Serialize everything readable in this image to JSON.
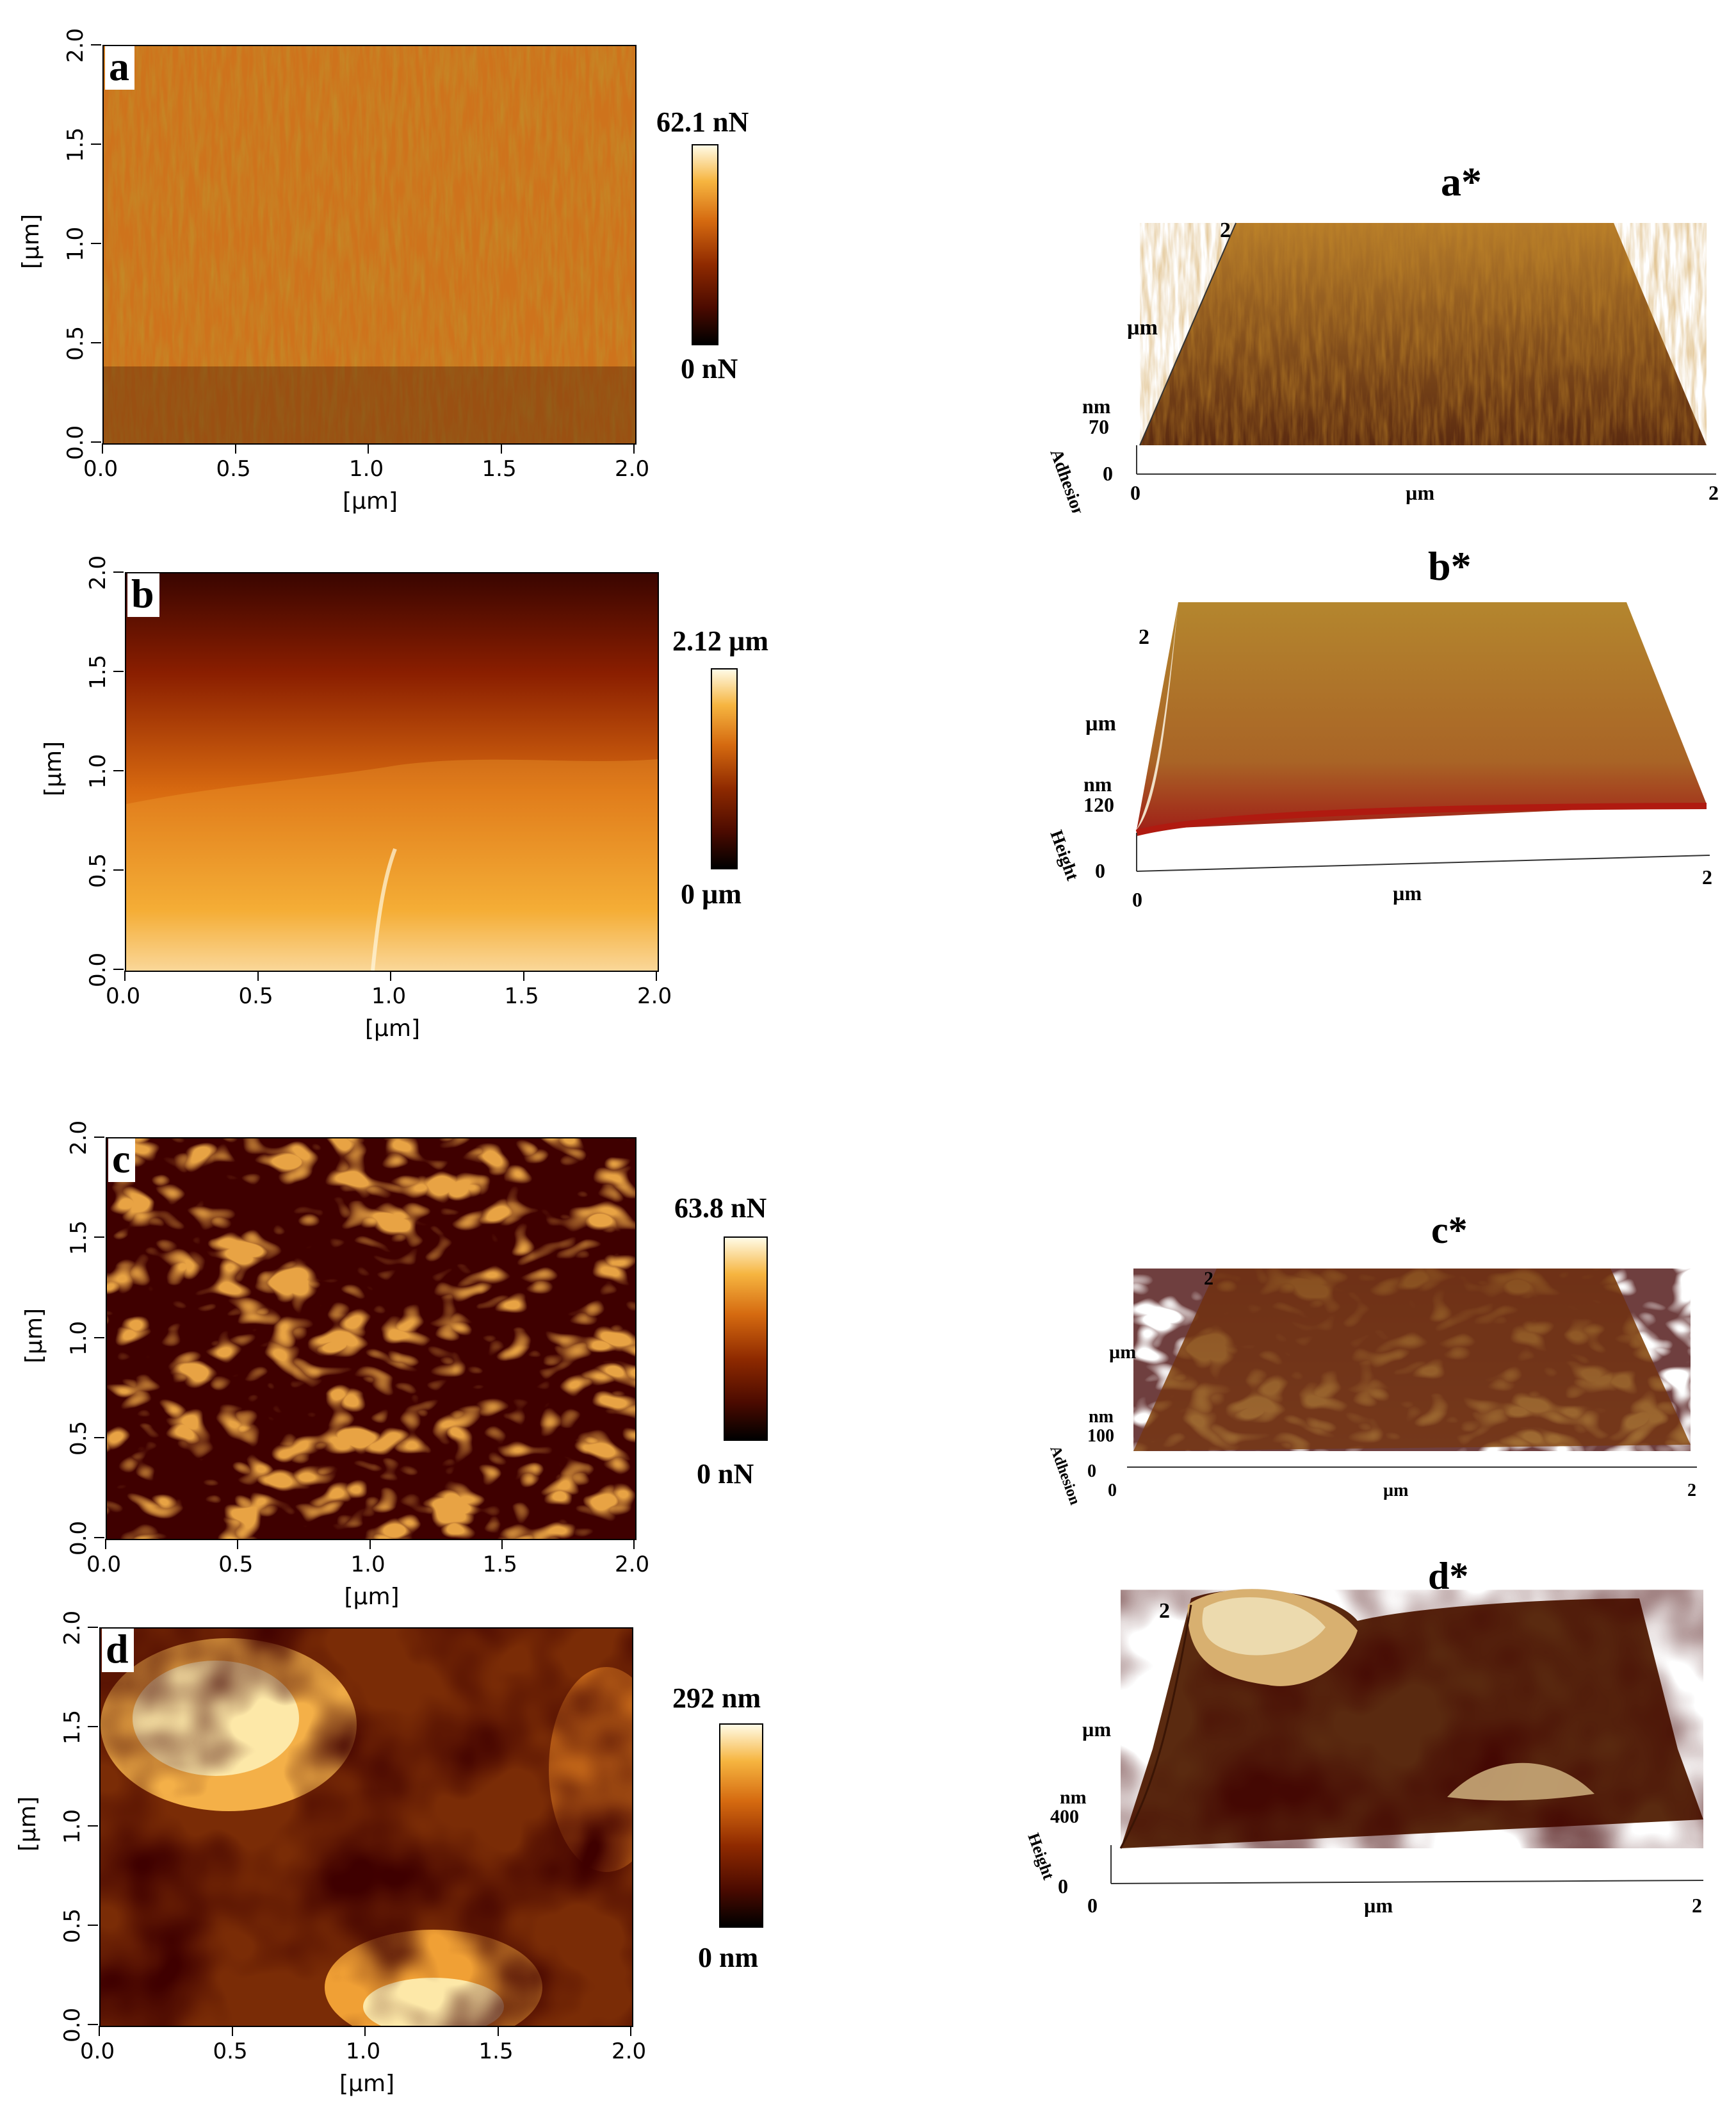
{
  "panels": [
    {
      "letter": "a",
      "scale_max": "62.1 nN",
      "scale_min": "0 nN"
    },
    {
      "letter": "b",
      "scale_max": "2.12 µm",
      "scale_min": "0 µm"
    },
    {
      "letter": "c",
      "scale_max": "63.8 nN",
      "scale_min": "0 nN"
    },
    {
      "letter": "d",
      "scale_max": "292 nm",
      "scale_min": "0 nm"
    }
  ],
  "axes": {
    "xlabel": "[µm]",
    "ylabel": "[µm]",
    "ticks": [
      "0.0",
      "0.5",
      "1.0",
      "1.5",
      "2.0"
    ]
  },
  "views3d": [
    {
      "title": "a*",
      "z_label": "Adhesion",
      "z_unit": "nm",
      "z_value": "70",
      "z_zero": "0",
      "y_label": "µm",
      "y_max": "2",
      "x_label": "µm",
      "x_min": "0",
      "x_max": "2"
    },
    {
      "title": "b*",
      "z_label": "Height",
      "z_unit": "nm",
      "z_value": "120",
      "z_zero": "0",
      "y_label": "µm",
      "y_max": "2",
      "x_label": "µm",
      "x_min": "0",
      "x_max": "2"
    },
    {
      "title": "c*",
      "z_label": "Adhesion",
      "z_unit": "nm",
      "z_value": "100",
      "z_zero": "0",
      "y_label": "µm",
      "y_max": "2",
      "x_label": "µm",
      "x_min": "0",
      "x_max": "2"
    },
    {
      "title": "d*",
      "z_label": "Height",
      "z_unit": "nm",
      "z_value": "400",
      "z_zero": "0",
      "y_label": "µm",
      "y_max": "2",
      "x_label": "µm",
      "x_min": "0",
      "x_max": "2"
    }
  ],
  "colors": {
    "colormap": [
      "#000000",
      "#4a0a00",
      "#8f2a00",
      "#d56a10",
      "#f6b540",
      "#fffbe6"
    ]
  }
}
